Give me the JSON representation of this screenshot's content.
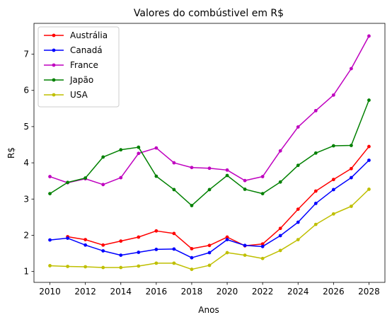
{
  "chart_data": {
    "type": "line",
    "title": "Valores do combústivel em R$",
    "xlabel": "Anos",
    "ylabel": "R$",
    "xlim": [
      2009.1,
      2028.9
    ],
    "ylim": [
      0.7,
      7.85
    ],
    "xticks": [
      2010,
      2012,
      2014,
      2016,
      2018,
      2020,
      2022,
      2024,
      2026,
      2028
    ],
    "yticks": [
      1,
      2,
      3,
      4,
      5,
      6,
      7
    ],
    "grid": false,
    "legend": "top-left",
    "x": [
      2010,
      2011,
      2012,
      2013,
      2014,
      2015,
      2016,
      2017,
      2018,
      2019,
      2020,
      2021,
      2022,
      2023,
      2024,
      2025,
      2026,
      2027,
      2028
    ],
    "series": [
      {
        "name": "Austrália",
        "color": "#ff0000",
        "values": [
          null,
          1.96,
          1.88,
          1.73,
          1.84,
          1.95,
          2.12,
          2.05,
          1.63,
          1.72,
          1.95,
          1.71,
          1.76,
          2.19,
          2.72,
          3.22,
          3.54,
          3.84,
          4.45
        ]
      },
      {
        "name": "Canadá",
        "color": "#0000ff",
        "values": [
          1.87,
          1.92,
          1.73,
          1.57,
          1.45,
          1.53,
          1.61,
          1.62,
          1.38,
          1.52,
          1.88,
          1.72,
          1.69,
          1.99,
          2.36,
          2.88,
          3.26,
          3.59,
          4.07
        ]
      },
      {
        "name": "France",
        "color": "#bf00bf",
        "values": [
          3.62,
          3.45,
          3.56,
          3.4,
          3.59,
          4.26,
          4.41,
          4.0,
          3.87,
          3.85,
          3.8,
          3.51,
          3.62,
          4.33,
          4.99,
          5.44,
          5.87,
          6.6,
          7.5
        ]
      },
      {
        "name": "Japão",
        "color": "#008000",
        "values": [
          3.15,
          3.46,
          3.58,
          4.16,
          4.36,
          4.43,
          3.63,
          3.26,
          2.82,
          3.26,
          3.65,
          3.27,
          3.15,
          3.47,
          3.93,
          4.27,
          4.47,
          4.48,
          5.73
        ]
      },
      {
        "name": "USA",
        "color": "#bfbf00",
        "values": [
          1.16,
          1.14,
          1.13,
          1.11,
          1.11,
          1.15,
          1.23,
          1.23,
          1.06,
          1.17,
          1.52,
          1.45,
          1.36,
          1.58,
          1.88,
          2.3,
          2.59,
          2.8,
          3.27
        ]
      }
    ]
  }
}
